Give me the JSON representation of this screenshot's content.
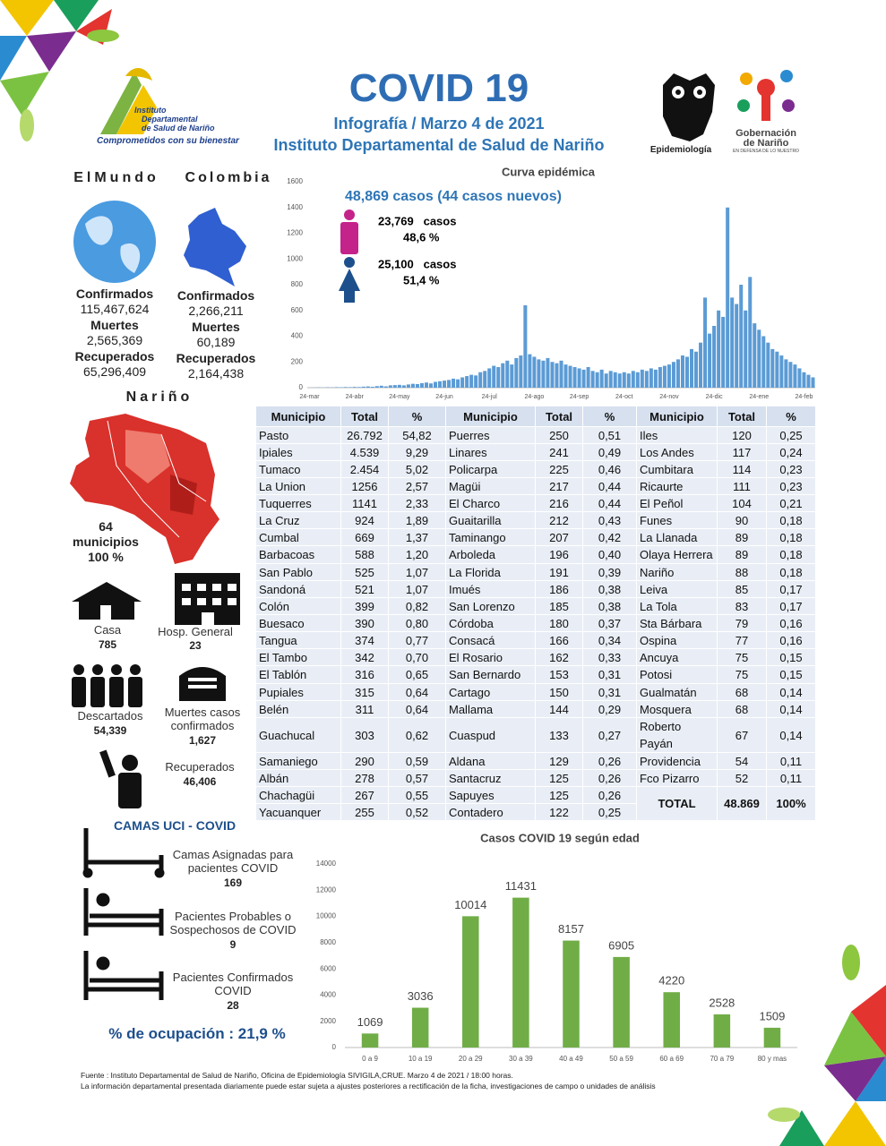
{
  "header": {
    "title": "COVID 19",
    "subtitle": "Infografía / Marzo 4 de 2021",
    "institution": "Instituto Departamental de Salud de Nariño",
    "logo_institute": [
      "Instituto",
      "Departamental",
      "de Salud de Nariño"
    ],
    "logo_tagline": "Comprometidos con su bienestar",
    "logo_epidemiology": "Epidemiología",
    "logo_government": [
      "Gobernación",
      "de Nariño"
    ],
    "logo_government_tagline": "EN DEFENSA DE LO NUESTRO"
  },
  "world": {
    "heading": "ElMundo",
    "stats": [
      {
        "label": "Confirmados",
        "value": "115,467,624"
      },
      {
        "label": "Muertes",
        "value": "2,565,369"
      },
      {
        "label": "Recuperados",
        "value": "65,296,409"
      }
    ]
  },
  "colombia": {
    "heading": "Colombia",
    "stats": [
      {
        "label": "Confirmados",
        "value": "2,266,211"
      },
      {
        "label": "Muertes",
        "value": "60,189"
      },
      {
        "label": "Recuperados",
        "value": "2,164,438"
      }
    ]
  },
  "narino": {
    "heading": "Nariño",
    "count": "64",
    "unit": "municipios",
    "percent": "100 %"
  },
  "facilities": [
    {
      "label": "Casa",
      "value": "785"
    },
    {
      "label": "Hosp. General",
      "value": "23"
    },
    {
      "label": "Descartados",
      "value": "54,339"
    },
    {
      "label": "Muertes casos confirmados",
      "value": "1,627"
    },
    {
      "label": "Recuperados",
      "value": "46,406"
    }
  ],
  "icu": {
    "title": "CAMAS UCI - COVID",
    "items": [
      {
        "label": "Camas Asignadas para pacientes COVID",
        "value": "169"
      },
      {
        "label": "Pacientes Probables o Sospechosos de COVID",
        "value": "9"
      },
      {
        "label": "Pacientes Confirmados COVID",
        "value": "28"
      }
    ],
    "occupancy": "% de ocupación : 21,9 %"
  },
  "table": {
    "columns": [
      "Municipio",
      "Total",
      "%",
      "Municipio",
      "Total",
      "%",
      "Municipio",
      "Total",
      "%"
    ],
    "rows": [
      [
        "Pasto",
        "26.792",
        "54,82",
        "Puerres",
        "250",
        "0,51",
        "Iles",
        "120",
        "0,25"
      ],
      [
        "Ipiales",
        "4.539",
        "9,29",
        "Linares",
        "241",
        "0,49",
        "Los Andes",
        "117",
        "0,24"
      ],
      [
        "Tumaco",
        "2.454",
        "5,02",
        "Policarpa",
        "225",
        "0,46",
        "Cumbitara",
        "114",
        "0,23"
      ],
      [
        "La Union",
        "1256",
        "2,57",
        "Magüi",
        "217",
        "0,44",
        "Ricaurte",
        "111",
        "0,23"
      ],
      [
        "Tuquerres",
        "1141",
        "2,33",
        "El Charco",
        "216",
        "0,44",
        "El Peñol",
        "104",
        "0,21"
      ],
      [
        "La Cruz",
        "924",
        "1,89",
        "Guaitarilla",
        "212",
        "0,43",
        "Funes",
        "90",
        "0,18"
      ],
      [
        "Cumbal",
        "669",
        "1,37",
        "Taminango",
        "207",
        "0,42",
        "La Llanada",
        "89",
        "0,18"
      ],
      [
        "Barbacoas",
        "588",
        "1,20",
        "Arboleda",
        "196",
        "0,40",
        "Olaya Herrera",
        "89",
        "0,18"
      ],
      [
        "San Pablo",
        "525",
        "1,07",
        "La Florida",
        "191",
        "0,39",
        "Nariño",
        "88",
        "0,18"
      ],
      [
        "Sandoná",
        "521",
        "1,07",
        "Imués",
        "186",
        "0,38",
        "Leiva",
        "85",
        "0,17"
      ],
      [
        "Colón",
        "399",
        "0,82",
        "San Lorenzo",
        "185",
        "0,38",
        "La Tola",
        "83",
        "0,17"
      ],
      [
        "Buesaco",
        "390",
        "0,80",
        "Córdoba",
        "180",
        "0,37",
        "Sta Bárbara",
        "79",
        "0,16"
      ],
      [
        "Tangua",
        "374",
        "0,77",
        "Consacá",
        "166",
        "0,34",
        "Ospina",
        "77",
        "0,16"
      ],
      [
        "El Tambo",
        "342",
        "0,70",
        "El Rosario",
        "162",
        "0,33",
        "Ancuya",
        "75",
        "0,15"
      ],
      [
        "El Tablón",
        "316",
        "0,65",
        "San Bernardo",
        "153",
        "0,31",
        "Potosi",
        "75",
        "0,15"
      ],
      [
        "Pupiales",
        "315",
        "0,64",
        "Cartago",
        "150",
        "0,31",
        "Gualmatán",
        "68",
        "0,14"
      ],
      [
        "Belén",
        "311",
        "0,64",
        "Mallama",
        "144",
        "0,29",
        "Mosquera",
        "68",
        "0,14"
      ],
      [
        "Guachucal",
        "303",
        "0,62",
        "Cuaspud",
        "133",
        "0,27",
        "Roberto Payán",
        "67",
        "0,14"
      ],
      [
        "Samaniego",
        "290",
        "0,59",
        "Aldana",
        "129",
        "0,26",
        "Providencia",
        "54",
        "0,11"
      ],
      [
        "Albán",
        "278",
        "0,57",
        "Santacruz",
        "125",
        "0,26",
        "Fco Pizarro",
        "52",
        "0,11"
      ],
      [
        "Chachagüi",
        "267",
        "0,55",
        "Sapuyes",
        "125",
        "0,26"
      ],
      [
        "Yacuanquer",
        "255",
        "0,52",
        "Contadero",
        "122",
        "0,25"
      ]
    ],
    "total": [
      "TOTAL",
      "48.869",
      "100%"
    ]
  },
  "chart_data": [
    {
      "type": "bar",
      "title": "Curva epidémica",
      "summary": "48,869  casos (44 casos nuevos)",
      "annotations": [
        {
          "count": "23,769   casos",
          "percent": "48,6 %"
        },
        {
          "count": "25,100   casos",
          "percent": "51,4 %"
        }
      ],
      "categories": [
        "24-mar",
        null,
        null,
        null,
        null,
        null,
        null,
        null,
        null,
        null,
        "24-abr",
        null,
        null,
        null,
        null,
        null,
        null,
        null,
        null,
        null,
        "24-may",
        null,
        null,
        null,
        null,
        null,
        null,
        null,
        null,
        null,
        "24-jun",
        null,
        null,
        null,
        null,
        null,
        null,
        null,
        null,
        null,
        "24-jul",
        null,
        null,
        null,
        null,
        null,
        null,
        null,
        null,
        null,
        "24-ago",
        null,
        null,
        null,
        null,
        null,
        null,
        null,
        null,
        null,
        "24-sep",
        null,
        null,
        null,
        null,
        null,
        null,
        null,
        null,
        null,
        "24-oct",
        null,
        null,
        null,
        null,
        null,
        null,
        null,
        null,
        null,
        "24-nov",
        null,
        null,
        null,
        null,
        null,
        null,
        null,
        null,
        null,
        "24-dic",
        null,
        null,
        null,
        null,
        null,
        null,
        null,
        null,
        null,
        "24-ene",
        null,
        null,
        null,
        null,
        null,
        null,
        null,
        null,
        null,
        "24-feb",
        null,
        null
      ],
      "values": [
        0,
        1,
        2,
        1,
        3,
        2,
        4,
        3,
        5,
        4,
        6,
        5,
        8,
        10,
        7,
        12,
        15,
        10,
        18,
        20,
        22,
        18,
        25,
        30,
        28,
        35,
        40,
        33,
        45,
        50,
        55,
        60,
        70,
        65,
        80,
        90,
        100,
        95,
        120,
        130,
        150,
        170,
        160,
        190,
        210,
        180,
        230,
        250,
        640,
        260,
        240,
        220,
        210,
        230,
        200,
        190,
        210,
        180,
        170,
        160,
        150,
        140,
        160,
        130,
        120,
        140,
        110,
        130,
        120,
        110,
        120,
        110,
        130,
        120,
        140,
        130,
        150,
        140,
        160,
        170,
        180,
        200,
        220,
        250,
        240,
        300,
        280,
        350,
        700,
        420,
        480,
        600,
        550,
        1400,
        700,
        650,
        800,
        600,
        860,
        500,
        450,
        400,
        350,
        300,
        280,
        250,
        220,
        200,
        180,
        150,
        120,
        100,
        80
      ],
      "color": "#5b9bd5",
      "ylim": [
        0,
        1600
      ],
      "yticks": [
        0,
        200,
        400,
        600,
        800,
        1000,
        1200,
        1400,
        1600
      ],
      "grid": false
    },
    {
      "type": "bar",
      "title": "Casos COVID 19  según edad",
      "categories": [
        "0 a 9",
        "10 a 19",
        "20 a 29",
        "30 a 39",
        "40 a 49",
        "50 a 59",
        "60 a 69",
        "70 a 79",
        "80 y mas"
      ],
      "values": [
        1069,
        3036,
        10014,
        11431,
        8157,
        6905,
        4220,
        2528,
        1509
      ],
      "color": "#70ad47",
      "ylim": [
        0,
        14000
      ],
      "yticks": [
        0,
        2000,
        4000,
        6000,
        8000,
        10000,
        12000,
        14000
      ],
      "grid": false
    }
  ],
  "footer": [
    "Fuente : Instituto Departamental de Salud de Nariño, Oficina de Epidemiología SIVIGILA,CRUE.  Marzo 4 de 2021 / 18:00  horas.",
    "La información departamental presentada diariamente puede estar sujeta a ajustes posteriores a  rectificación de la ficha, investigaciones de campo o unidades de análisis"
  ]
}
